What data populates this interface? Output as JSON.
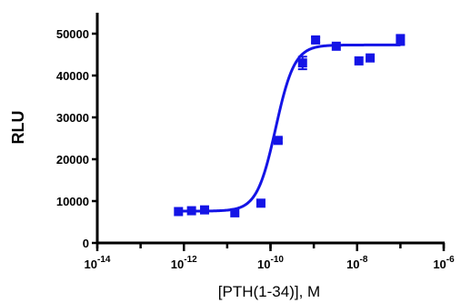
{
  "chart_data": {
    "type": "scatter",
    "title": "",
    "xlabel": "[PTH(1-34)], M",
    "ylabel": "RLU",
    "x_scale": "log10",
    "xlim": [
      1e-14,
      1e-06
    ],
    "ylim": [
      0,
      50000
    ],
    "x_major_ticks": [
      1e-14,
      1e-12,
      1e-10,
      1e-08,
      1e-06
    ],
    "x_tick_labels": [
      {
        "base": "10",
        "exp": "-14"
      },
      {
        "base": "10",
        "exp": "-12"
      },
      {
        "base": "10",
        "exp": "-10"
      },
      {
        "base": "10",
        "exp": "-8"
      },
      {
        "base": "10",
        "exp": "-6"
      }
    ],
    "y_ticks": [
      0,
      10000,
      20000,
      30000,
      40000,
      50000
    ],
    "y_tick_labels": [
      "0",
      "10000",
      "20000",
      "30000",
      "40000",
      "50000"
    ],
    "color": "#1414e6",
    "points": [
      {
        "x": 7.5e-13,
        "y": 7500,
        "err": 0
      },
      {
        "x": 1.5e-12,
        "y": 7700,
        "err": 0
      },
      {
        "x": 3e-12,
        "y": 7900,
        "err": 0
      },
      {
        "x": 1.5e-11,
        "y": 7200,
        "err": 0
      },
      {
        "x": 6e-11,
        "y": 9500,
        "err": 0
      },
      {
        "x": 1.5e-10,
        "y": 24500,
        "err": 500
      },
      {
        "x": 5.5e-10,
        "y": 43000,
        "err": 1500
      },
      {
        "x": 1.1e-09,
        "y": 48500,
        "err": 600
      },
      {
        "x": 3.3e-09,
        "y": 47000,
        "err": 0
      },
      {
        "x": 1.1e-08,
        "y": 43500,
        "err": 0
      },
      {
        "x": 2e-08,
        "y": 44200,
        "err": 0
      },
      {
        "x": 1e-07,
        "y": 48500,
        "err": 1200
      }
    ],
    "fit": {
      "model": "sigmoidal dose-response",
      "bottom": 7600,
      "top": 47300,
      "log_ec50": -9.88,
      "hill_slope": 2.0
    },
    "grid": false,
    "legend": "none"
  }
}
